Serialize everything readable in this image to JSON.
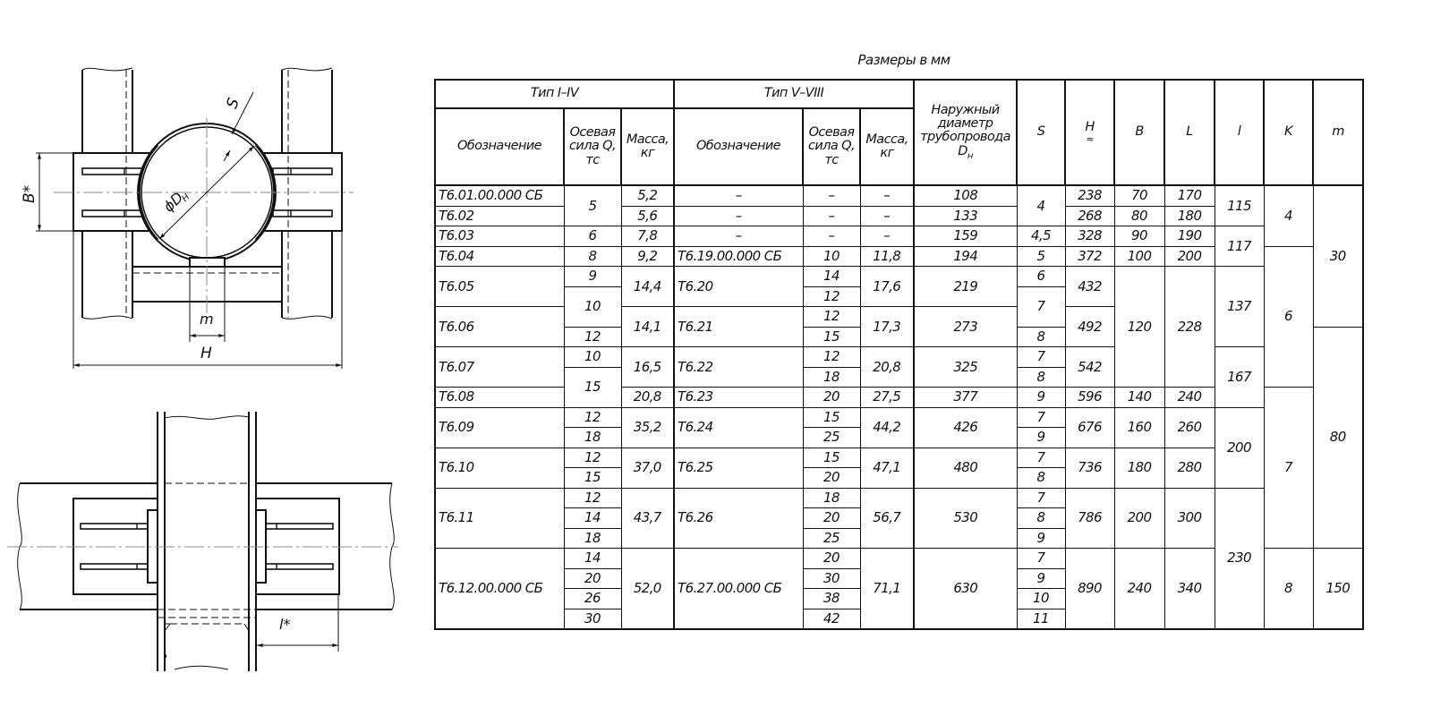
{
  "drawing": {
    "labels": {
      "s": "S",
      "diameter": "ϕD",
      "diameter_sub": "Н",
      "b": "B*",
      "m": "m",
      "h": "H",
      "l": "l*"
    }
  },
  "caption": "Размеры в мм",
  "table": {
    "headers": {
      "type_1_4": "Тип I–IV",
      "type_5_8": "Тип V–VIII",
      "designation": "Обозначение",
      "axial_force": "Осевая сила Q, тс",
      "mass": "Масса, кг",
      "outer_diameter": "Наружный диаметр трубопровода D",
      "outer_diameter_sub": "н",
      "s": "S",
      "h": "H",
      "h_approx": "≈",
      "b": "B",
      "L": "L",
      "l": "l",
      "k": "K",
      "m": "m"
    },
    "columns": {
      "designation_1": [
        "Т6.01.00.000 СБ",
        "Т6.02",
        "Т6.03",
        "Т6.04",
        "Т6.05",
        "Т6.06",
        "Т6.07",
        "Т6.08",
        "Т6.09",
        "Т6.10",
        "Т6.11",
        "Т6.12.00.000 СБ"
      ],
      "force_1": [
        "5",
        "6",
        "8",
        "9",
        "10",
        "12",
        "10",
        "15",
        "12",
        "18",
        "12",
        "15",
        "12",
        "14",
        "18",
        "14",
        "20",
        "26",
        "30"
      ],
      "mass_1": [
        "5,2",
        "5,6",
        "7,8",
        "9,2",
        "14,4",
        "14,1",
        "16,5",
        "20,8",
        "35,2",
        "37,0",
        "43,7",
        "52,0"
      ],
      "designation_2": [
        "–",
        "–",
        "–",
        "Т6.19.00.000 СБ",
        "Т6.20",
        "Т6.21",
        "Т6.22",
        "Т6.23",
        "Т6.24",
        "Т6.25",
        "Т6.26",
        "Т6.27.00.000 СБ"
      ],
      "force_2": [
        "–",
        "–",
        "–",
        "10",
        "14",
        "12",
        "12",
        "15",
        "12",
        "18",
        "20",
        "15",
        "25",
        "15",
        "20",
        "18",
        "20",
        "25",
        "20",
        "30",
        "38",
        "42"
      ],
      "mass_2": [
        "–",
        "–",
        "–",
        "11,8",
        "17,6",
        "17,3",
        "20,8",
        "27,5",
        "44,2",
        "47,1",
        "56,7",
        "71,1"
      ],
      "outer_diameter": [
        "108",
        "133",
        "159",
        "194",
        "219",
        "273",
        "325",
        "377",
        "426",
        "480",
        "530",
        "630"
      ],
      "s": [
        "4",
        "4,5",
        "5",
        "6",
        "7",
        "8",
        "7",
        "8",
        "9",
        "7",
        "9",
        "7",
        "8",
        "7",
        "8",
        "9",
        "7",
        "9",
        "10",
        "11"
      ],
      "h": [
        "238",
        "268",
        "328",
        "372",
        "432",
        "492",
        "542",
        "596",
        "676",
        "736",
        "786",
        "890"
      ],
      "b": [
        "70",
        "80",
        "90",
        "100",
        "120",
        "140",
        "160",
        "180",
        "200",
        "240"
      ],
      "L": [
        "170",
        "180",
        "190",
        "200",
        "228",
        "240",
        "260",
        "280",
        "300",
        "340"
      ],
      "l": [
        "115",
        "117",
        "137",
        "167",
        "200",
        "230"
      ],
      "k": [
        "4",
        "6",
        "7",
        "8"
      ],
      "m": [
        "30",
        "80",
        "150"
      ]
    }
  }
}
